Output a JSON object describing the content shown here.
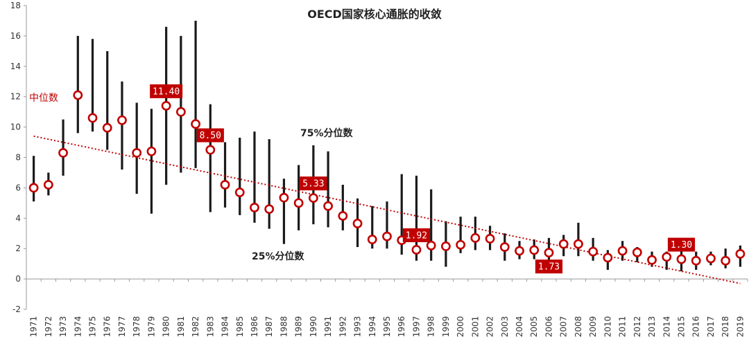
{
  "chart_data": {
    "type": "scatter",
    "title": "OECD国家核心通胀的收敛",
    "xlabel": "",
    "ylabel": "",
    "ylim": [
      -2,
      18
    ],
    "yticks": [
      -2,
      0,
      2,
      4,
      6,
      8,
      10,
      12,
      14,
      16,
      18
    ],
    "grid": false,
    "categories": [
      "1971",
      "1972",
      "1973",
      "1974",
      "1975",
      "1976",
      "1977",
      "1978",
      "1979",
      "1980",
      "1981",
      "1982",
      "1983",
      "1984",
      "1985",
      "1986",
      "1987",
      "1988",
      "1989",
      "1990",
      "1991",
      "1992",
      "1993",
      "1994",
      "1995",
      "1996",
      "1997",
      "1998",
      "1999",
      "2000",
      "2001",
      "2002",
      "2003",
      "2004",
      "2005",
      "2006",
      "2007",
      "2008",
      "2009",
      "2010",
      "2011",
      "2012",
      "2013",
      "2014",
      "2015",
      "2016",
      "2017",
      "2018",
      "2019"
    ],
    "series": [
      {
        "name": "中位数",
        "kind": "marker",
        "color": "#c00000",
        "values": [
          6.0,
          6.2,
          8.3,
          12.1,
          10.6,
          9.95,
          10.45,
          8.3,
          8.4,
          11.4,
          11.0,
          10.2,
          8.5,
          6.2,
          5.7,
          4.7,
          4.6,
          5.35,
          5.0,
          5.33,
          4.8,
          4.15,
          3.65,
          2.6,
          2.8,
          2.55,
          1.92,
          2.2,
          2.15,
          2.25,
          2.7,
          2.65,
          2.1,
          1.85,
          1.9,
          1.73,
          2.3,
          2.3,
          1.8,
          1.4,
          1.85,
          1.75,
          1.25,
          1.45,
          1.3,
          1.2,
          1.35,
          1.2,
          1.65
        ]
      },
      {
        "name": "25%分位数",
        "kind": "range-low",
        "color": "#1a1a1a",
        "values": [
          5.1,
          5.5,
          6.8,
          9.6,
          9.7,
          8.5,
          7.2,
          5.6,
          4.3,
          6.2,
          7.0,
          7.3,
          4.4,
          4.7,
          4.2,
          3.7,
          3.3,
          2.3,
          3.2,
          3.6,
          3.4,
          3.2,
          2.1,
          2.0,
          2.0,
          1.6,
          1.2,
          1.2,
          0.8,
          1.7,
          1.9,
          1.9,
          1.2,
          1.3,
          1.3,
          1.1,
          1.5,
          1.5,
          1.2,
          0.6,
          1.2,
          1.1,
          0.8,
          0.6,
          0.5,
          0.6,
          0.9,
          0.7,
          0.8
        ]
      },
      {
        "name": "75%分位数",
        "kind": "range-high",
        "color": "#1a1a1a",
        "values": [
          8.1,
          7.0,
          10.5,
          16.0,
          15.8,
          15.0,
          13.0,
          11.6,
          11.2,
          16.6,
          16.0,
          17.0,
          11.5,
          9.0,
          9.3,
          9.7,
          9.2,
          6.6,
          7.5,
          8.8,
          8.4,
          6.2,
          5.3,
          4.8,
          5.1,
          6.9,
          6.8,
          5.9,
          3.8,
          4.1,
          4.1,
          3.5,
          3.0,
          2.5,
          2.6,
          2.7,
          2.9,
          3.7,
          2.7,
          1.9,
          2.5,
          2.1,
          1.8,
          1.8,
          2.0,
          1.8,
          1.8,
          2.0,
          2.2
        ]
      },
      {
        "name": "trend",
        "kind": "linear-trend",
        "color": "#c00000",
        "start": 9.4,
        "end": -0.3
      }
    ],
    "callouts": [
      {
        "year": "1980",
        "label": "11.40",
        "value": 11.4,
        "placement": "above"
      },
      {
        "year": "1983",
        "label": "8.50",
        "value": 8.5,
        "placement": "above"
      },
      {
        "year": "1990",
        "label": "5.33",
        "value": 5.33,
        "placement": "above"
      },
      {
        "year": "1997",
        "label": "1.92",
        "value": 1.92,
        "placement": "above"
      },
      {
        "year": "2006",
        "label": "1.73",
        "value": 1.73,
        "placement": "below"
      },
      {
        "year": "2015",
        "label": "1.30",
        "value": 1.3,
        "placement": "above"
      }
    ],
    "annotations": {
      "median_label": "中位数",
      "upper_label": "75%分位数",
      "lower_label": "25%分位数"
    },
    "colors": {
      "accent": "#c00000",
      "range": "#1a1a1a",
      "axis": "#999999"
    }
  }
}
